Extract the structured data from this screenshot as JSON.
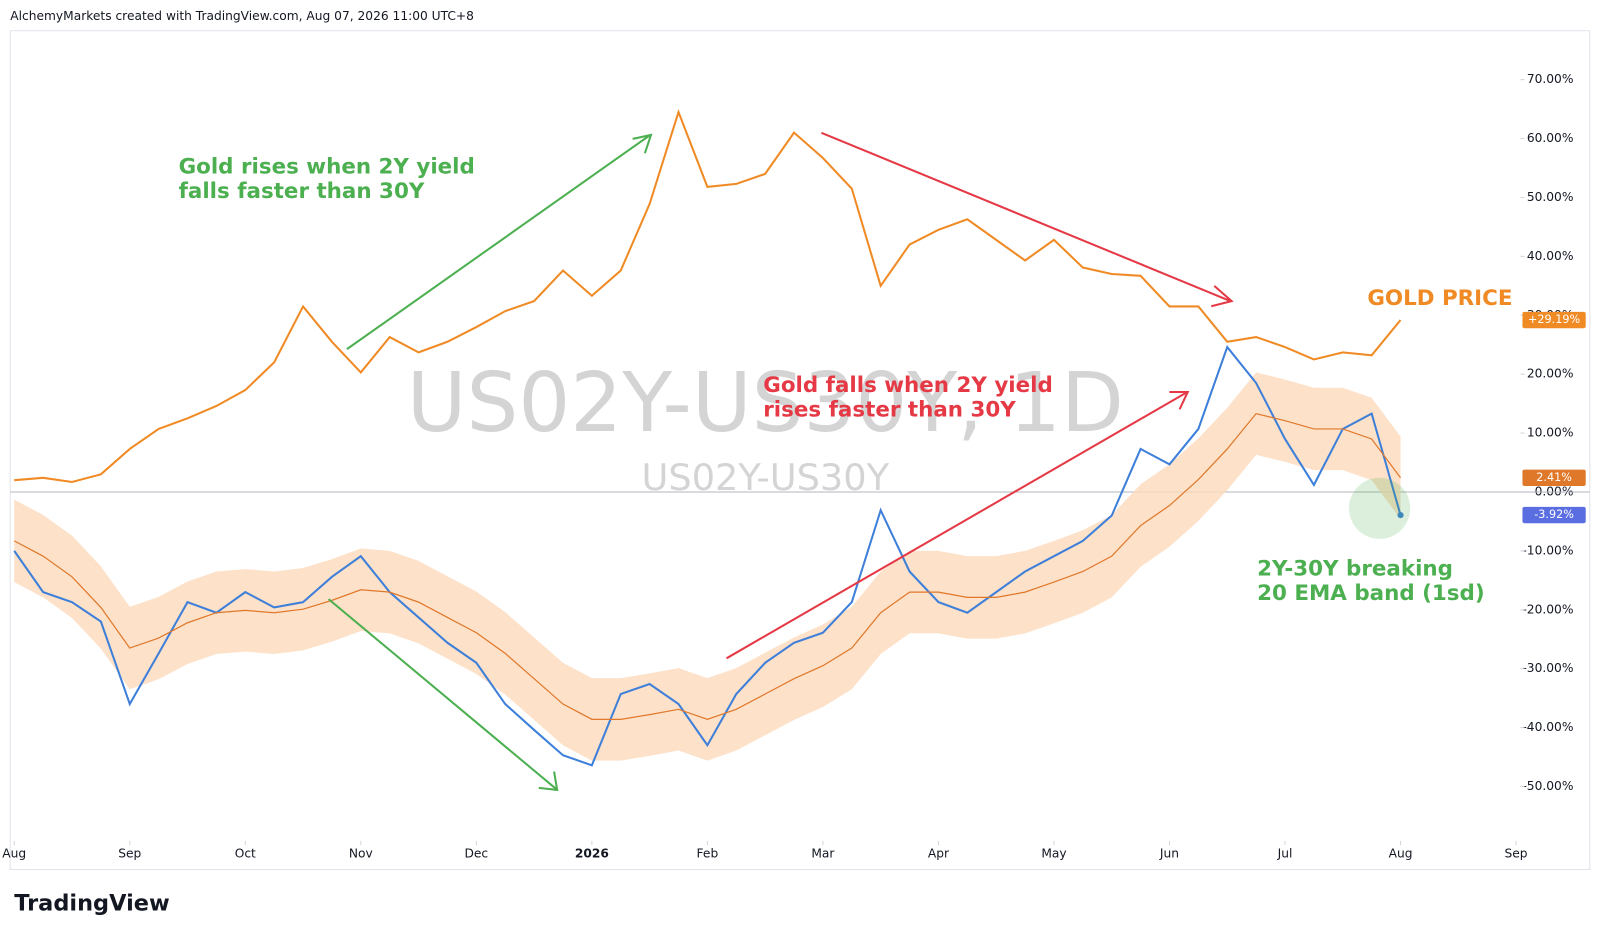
{
  "header": "AlchemyMarkets created with TradingView.com, Aug 07, 2026 11:00 UTC+8",
  "footer": "TradingView",
  "chart_data": {
    "type": "line",
    "watermark": "US02Y-US30Y, 1D",
    "annotations": [
      "Gold rises when 2Y yield",
      "falls faster than 30Y",
      "Gold falls when 2Y yield",
      "rises faster than 30Y",
      "2Y-30Y breaking",
      "20 EMA band (1sd)"
    ],
    "x": [
      0,
      0.25,
      0.5,
      0.75,
      1,
      1.25,
      1.5,
      1.75,
      2,
      2.25,
      2.5,
      2.75,
      3,
      3.25,
      3.5,
      3.75,
      4,
      4.25,
      4.5,
      4.75,
      5,
      5.25,
      5.5,
      5.75,
      6,
      6.25,
      6.5,
      6.75,
      7,
      7.25,
      7.5,
      7.75,
      8,
      8.25,
      8.5,
      8.75,
      9,
      9.25,
      9.5,
      9.75,
      10,
      10.25,
      10.5,
      10.75,
      11,
      11.25,
      11.5,
      11.75,
      12
    ],
    "xlim": [
      -0.035,
      13.02
    ],
    "xticks": [
      {
        "value": 0,
        "label": "Aug"
      },
      {
        "value": 1,
        "label": "Sep"
      },
      {
        "value": 2,
        "label": "Oct"
      },
      {
        "value": 3,
        "label": "Nov"
      },
      {
        "value": 4,
        "label": "Dec"
      },
      {
        "value": 5,
        "label": "2026"
      },
      {
        "value": 6,
        "label": "Feb"
      },
      {
        "value": 7,
        "label": "Mar"
      },
      {
        "value": 8,
        "label": "Apr"
      },
      {
        "value": 9,
        "label": "May"
      },
      {
        "value": 10,
        "label": "Jun"
      },
      {
        "value": 11,
        "label": "Jul"
      },
      {
        "value": 12,
        "label": "Aug"
      },
      {
        "value": 13,
        "label": "Sep"
      }
    ],
    "ylim": [
      -58.9,
      78.3
    ],
    "yticks": [
      {
        "value": 70,
        "label": "70.00%"
      },
      {
        "value": 60,
        "label": "60.00%"
      },
      {
        "value": 50,
        "label": "50.00%"
      },
      {
        "value": 40,
        "label": "40.00%"
      },
      {
        "value": 30,
        "label": "30.00%"
      },
      {
        "value": 20,
        "label": "20.00%"
      },
      {
        "value": 10,
        "label": "10.00%"
      },
      {
        "value": 0,
        "label": "0.00%"
      },
      {
        "value": -10,
        "label": "-10.00%"
      },
      {
        "value": -20,
        "label": "-20.00%"
      },
      {
        "value": -30,
        "label": "-30.00%"
      },
      {
        "value": -40,
        "label": "-40.00%"
      },
      {
        "value": -50,
        "label": "-50.00%"
      }
    ],
    "grid": false,
    "zero_line": true,
    "series": [
      {
        "name": "GOLD PRICE",
        "color": "#f08a24",
        "last_value_label": "+29.19%",
        "values": [
          2,
          2.4,
          1.7,
          3,
          7.3,
          10.7,
          12.5,
          14.6,
          17.3,
          22,
          31.5,
          25.5,
          20.3,
          26.3,
          23.7,
          25.5,
          28,
          30.7,
          32.4,
          37.6,
          33.3,
          37.6,
          48.9,
          64.5,
          51.8,
          52.3,
          54,
          61,
          56.7,
          51.5,
          35,
          42,
          44.5,
          46.3,
          42.8,
          39.3,
          42.8,
          38.1,
          37,
          36.7,
          31.5,
          31.5,
          25.5,
          26.3,
          24.6,
          22.5,
          23.7,
          23.2,
          29.19
        ]
      },
      {
        "name": "US02Y-US30Y",
        "color": "#3d7fd9",
        "last_value_label": "-3.92%",
        "values": [
          -10,
          -17,
          -18.7,
          -22,
          -36,
          -27.4,
          -18.7,
          -20.5,
          -17,
          -19.6,
          -18.7,
          -14.4,
          -10.9,
          -17,
          -21.3,
          -25.6,
          -29,
          -36,
          -40.4,
          -44.7,
          -46.4,
          -34.3,
          -32.6,
          -36,
          -43,
          -34.3,
          -29,
          -25.6,
          -23.9,
          -18.7,
          -3.1,
          -13.5,
          -18.7,
          -20.5,
          -17,
          -13.5,
          -10.9,
          -8.3,
          -4,
          7.3,
          4.7,
          10.7,
          24.6,
          18.5,
          9,
          1.2,
          10.7,
          13.3,
          -3.92
        ]
      },
      {
        "color": "#e0782a",
        "last_value_label": "2.41%",
        "values": [
          -8.3,
          -10.9,
          -14.4,
          -19.6,
          -26.5,
          -24.8,
          -22.2,
          -20.5,
          -20.1,
          -20.5,
          -19.9,
          -18.4,
          -16.6,
          -17,
          -18.7,
          -21.3,
          -23.9,
          -27.4,
          -31.7,
          -36,
          -38.6,
          -38.6,
          -37.8,
          -36.9,
          -38.6,
          -36.9,
          -34.3,
          -31.7,
          -29.5,
          -26.5,
          -20.5,
          -17,
          -17,
          -17.9,
          -17.9,
          -17,
          -15.3,
          -13.5,
          -10.9,
          -5.7,
          -2.3,
          2.1,
          7.3,
          13.3,
          12.1,
          10.7,
          10.7,
          9,
          2.41
        ]
      },
      {
        "type": "band",
        "color": "#fdd9bc",
        "values": [
          -1.3,
          -3.9,
          -7.4,
          -12.6,
          -19.5,
          -17.8,
          -15.2,
          -13.5,
          -13.1,
          -13.5,
          -12.9,
          -11.4,
          -9.6,
          -10,
          -11.7,
          -14.3,
          -16.9,
          -20.4,
          -24.7,
          -29,
          -31.6,
          -31.6,
          -30.8,
          -29.9,
          -31.6,
          -29.9,
          -27.3,
          -24.7,
          -22.5,
          -19.5,
          -13.5,
          -10,
          -10,
          -10.9,
          -10.9,
          -10,
          -8.3,
          -6.5,
          -3.9,
          1.3,
          4.7,
          9.1,
          14.3,
          20.3,
          19.1,
          17.7,
          17.7,
          16,
          9.41
        ],
        "lower": [
          -15.3,
          -17.9,
          -21.4,
          -26.6,
          -33.5,
          -31.8,
          -29.2,
          -27.5,
          -27.1,
          -27.5,
          -26.9,
          -25.4,
          -23.6,
          -24,
          -25.7,
          -28.3,
          -30.9,
          -34.4,
          -38.7,
          -43,
          -45.6,
          -45.6,
          -44.8,
          -43.9,
          -45.6,
          -43.9,
          -41.3,
          -38.7,
          -36.5,
          -33.5,
          -27.5,
          -24,
          -24,
          -24.9,
          -24.9,
          -24,
          -22.3,
          -20.5,
          -17.9,
          -12.7,
          -9.3,
          -4.9,
          0.3,
          6.3,
          5.1,
          3.7,
          3.7,
          2,
          -4.59
        ]
      }
    ]
  }
}
